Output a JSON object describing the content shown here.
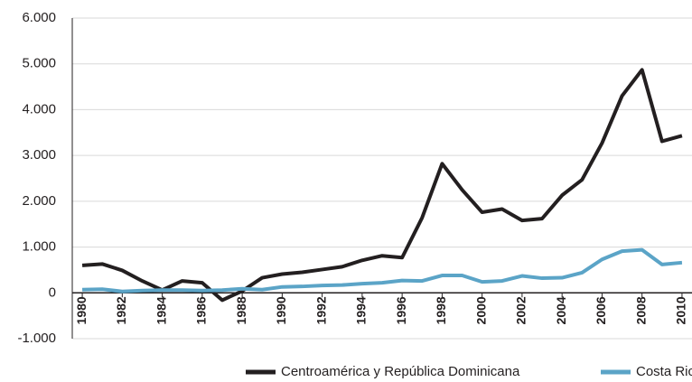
{
  "chart_data": {
    "type": "line",
    "x": [
      1980,
      1981,
      1982,
      1983,
      1984,
      1985,
      1986,
      1987,
      1988,
      1989,
      1990,
      1991,
      1992,
      1993,
      1994,
      1995,
      1996,
      1997,
      1998,
      1999,
      2000,
      2001,
      2002,
      2003,
      2004,
      2005,
      2006,
      2007,
      2008,
      2009,
      2010
    ],
    "xlim": [
      1979.5,
      2010.5
    ],
    "xticks": [
      1980,
      1982,
      1984,
      1986,
      1988,
      1990,
      1992,
      1994,
      1996,
      1998,
      2000,
      2002,
      2004,
      2006,
      2008,
      2010
    ],
    "ylim": [
      -1000,
      6000
    ],
    "yticks": [
      {
        "value": -1000,
        "label": "-1.000"
      },
      0,
      {
        "value": 1000,
        "label": "1.000"
      },
      {
        "value": 2000,
        "label": "2.000"
      },
      {
        "value": 3000,
        "label": "3.000"
      },
      {
        "value": 4000,
        "label": "4.000"
      },
      {
        "value": 5000,
        "label": "5.000"
      },
      {
        "value": 6000,
        "label": "6.000"
      }
    ],
    "grid": true,
    "legend": "bottom",
    "series": [
      {
        "name": "Centroamérica y República Dominicana",
        "color": "#231f20",
        "values": [
          600,
          630,
          490,
          260,
          60,
          260,
          220,
          -160,
          40,
          330,
          410,
          450,
          510,
          570,
          710,
          810,
          770,
          1640,
          2820,
          2250,
          1760,
          1830,
          1580,
          1620,
          2130,
          2470,
          3270,
          4300,
          4870,
          3310,
          3430
        ]
      },
      {
        "name": "Costa Rica",
        "color": "#5ba4c7",
        "values": [
          70,
          80,
          30,
          50,
          60,
          60,
          50,
          60,
          90,
          70,
          130,
          140,
          160,
          170,
          200,
          220,
          270,
          260,
          380,
          380,
          240,
          260,
          370,
          320,
          330,
          440,
          730,
          910,
          940,
          620,
          660
        ]
      }
    ]
  }
}
